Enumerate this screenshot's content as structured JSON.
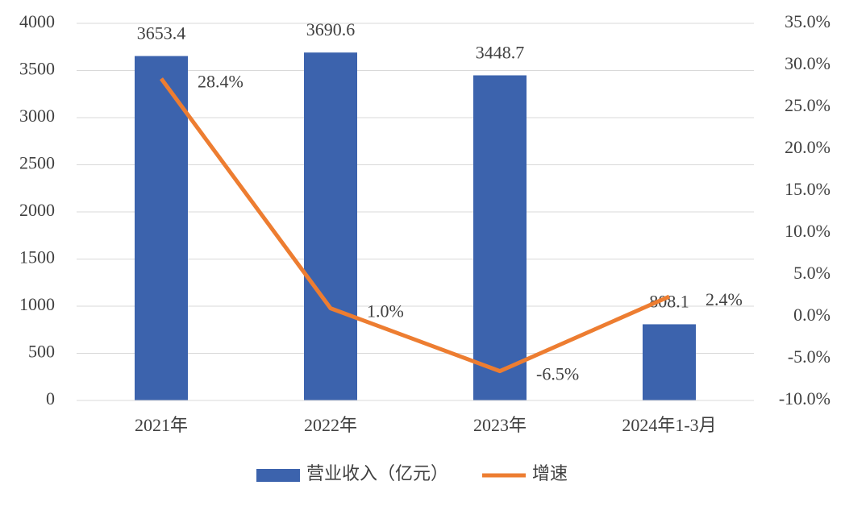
{
  "chart_data": {
    "type": "combo",
    "categories": [
      "2021年",
      "2022年",
      "2023年",
      "2024年1-3月"
    ],
    "series": [
      {
        "name": "营业收入（亿元）",
        "type": "bar",
        "color": "#3c63ad",
        "values": [
          3653.4,
          3690.6,
          3448.7,
          808.1
        ]
      },
      {
        "name": "增速",
        "type": "line",
        "axis": "y2",
        "color": "#ed7d31",
        "values": [
          28.4,
          1.0,
          -6.5,
          2.4
        ],
        "value_labels": [
          "28.4%",
          "1.0%",
          "-6.5%",
          "2.4%"
        ]
      }
    ],
    "ylim": [
      0,
      4000
    ],
    "yticks": [
      0,
      500,
      1000,
      1500,
      2000,
      2500,
      3000,
      3500,
      4000
    ],
    "y2lim": [
      -10,
      35
    ],
    "y2ticks": [
      {
        "value": -10,
        "label": "-10.0%"
      },
      {
        "value": -5,
        "label": "-5.0%"
      },
      {
        "value": 0,
        "label": "0.0%"
      },
      {
        "value": 5,
        "label": "5.0%"
      },
      {
        "value": 10,
        "label": "10.0%"
      },
      {
        "value": 15,
        "label": "15.0%"
      },
      {
        "value": 20,
        "label": "20.0%"
      },
      {
        "value": 25,
        "label": "25.0%"
      },
      {
        "value": 30,
        "label": "30.0%"
      },
      {
        "value": 35,
        "label": "35.0%"
      }
    ],
    "grid": true,
    "legend": "bottom"
  }
}
